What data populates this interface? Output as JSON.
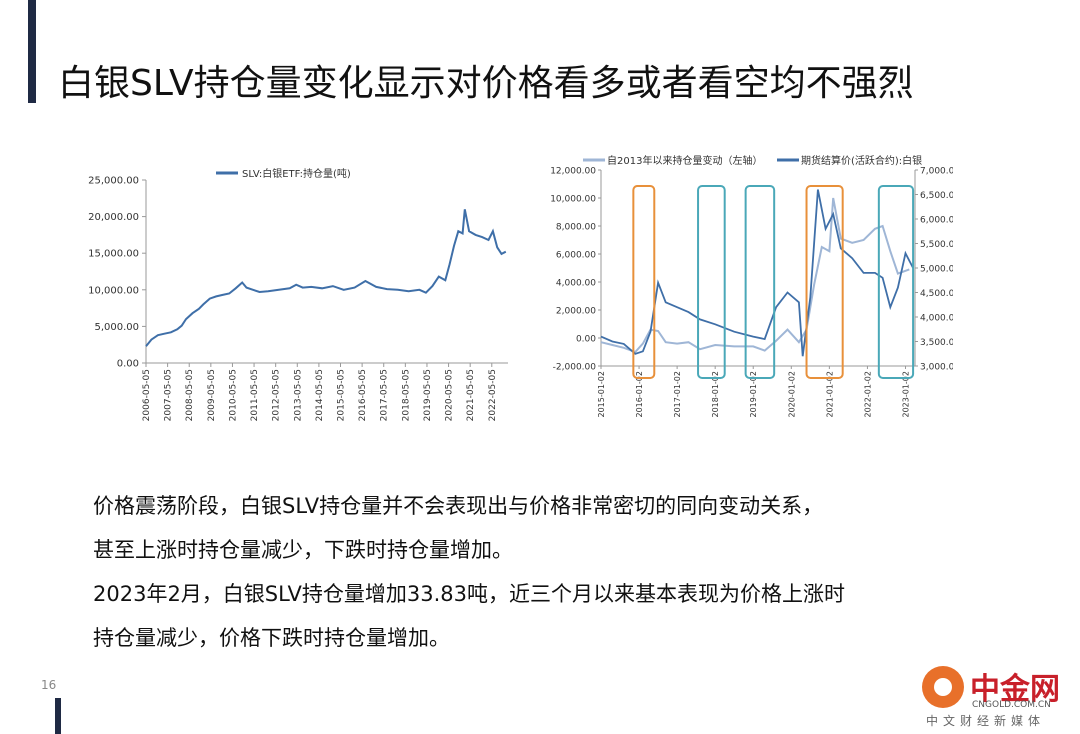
{
  "page": {
    "title": "白银SLV持仓量变化显示对价格看多或者看空均不强烈",
    "page_number": "16",
    "paragraphs": [
      "价格震荡阶段，白银SLV持仓量并不会表现出与价格非常密切的同向变动关系，",
      "甚至上涨时持仓量减少，下跌时持仓量增加。",
      "2023年2月，白银SLV持仓量增加33.83吨，近三个月以来基本表现为价格上涨时",
      "持仓量减少，价格下跌时持仓量增加。"
    ]
  },
  "watermark": {
    "name": "中金网",
    "domain": "CNGOLD.COM.CN",
    "tagline": "中文财经新媒体"
  },
  "colors": {
    "dark_bar": "#1f2a44",
    "line_dark": "#3f6fa8",
    "line_light": "#9fb6d6",
    "box_orange": "#e8903a",
    "box_teal": "#4aa8b8"
  },
  "chart_data": [
    {
      "type": "line",
      "legend": "top",
      "grid": false,
      "series": [
        {
          "name": "SLV:白银ETF:持仓量(吨)"
        }
      ],
      "x_ticks": [
        "2006-05-05",
        "2007-05-05",
        "2008-05-05",
        "2009-05-05",
        "2010-05-05",
        "2011-05-05",
        "2012-05-05",
        "2013-05-05",
        "2014-05-05",
        "2015-05-05",
        "2016-05-05",
        "2017-05-05",
        "2018-05-05",
        "2019-05-05",
        "2020-05-05",
        "2021-05-05",
        "2022-05-05"
      ],
      "y_ticks": [
        "0.00",
        "5,000.00",
        "10,000.00",
        "15,000.00",
        "20,000.00",
        "25,000.00"
      ],
      "ylim": [
        0,
        25000
      ],
      "xlim": [
        2006.35,
        2023.1
      ],
      "points": [
        [
          2006.35,
          2300
        ],
        [
          2006.6,
          3200
        ],
        [
          2006.9,
          3800
        ],
        [
          2007.2,
          4000
        ],
        [
          2007.5,
          4200
        ],
        [
          2007.8,
          4600
        ],
        [
          2008.0,
          5100
        ],
        [
          2008.2,
          6000
        ],
        [
          2008.5,
          6800
        ],
        [
          2008.8,
          7400
        ],
        [
          2009.0,
          8000
        ],
        [
          2009.3,
          8800
        ],
        [
          2009.6,
          9100
        ],
        [
          2009.9,
          9300
        ],
        [
          2010.2,
          9500
        ],
        [
          2010.5,
          10200
        ],
        [
          2010.8,
          11000
        ],
        [
          2011.0,
          10300
        ],
        [
          2011.3,
          10000
        ],
        [
          2011.6,
          9700
        ],
        [
          2012.0,
          9800
        ],
        [
          2012.5,
          10000
        ],
        [
          2013.0,
          10200
        ],
        [
          2013.3,
          10700
        ],
        [
          2013.6,
          10300
        ],
        [
          2014.0,
          10400
        ],
        [
          2014.5,
          10200
        ],
        [
          2015.0,
          10500
        ],
        [
          2015.5,
          10000
        ],
        [
          2016.0,
          10300
        ],
        [
          2016.5,
          11200
        ],
        [
          2017.0,
          10400
        ],
        [
          2017.5,
          10100
        ],
        [
          2018.0,
          10000
        ],
        [
          2018.5,
          9800
        ],
        [
          2019.0,
          10000
        ],
        [
          2019.3,
          9600
        ],
        [
          2019.6,
          10500
        ],
        [
          2019.9,
          11800
        ],
        [
          2020.2,
          11300
        ],
        [
          2020.4,
          13500
        ],
        [
          2020.6,
          16000
        ],
        [
          2020.8,
          18000
        ],
        [
          2021.0,
          17700
        ],
        [
          2021.1,
          21000
        ],
        [
          2021.3,
          18000
        ],
        [
          2021.6,
          17500
        ],
        [
          2021.9,
          17200
        ],
        [
          2022.2,
          16800
        ],
        [
          2022.4,
          18000
        ],
        [
          2022.6,
          15800
        ],
        [
          2022.8,
          14900
        ],
        [
          2023.0,
          15200
        ]
      ]
    },
    {
      "type": "line",
      "legend": "top",
      "grid": false,
      "series": [
        {
          "name": "自2013年以来持仓量变动（左轴）",
          "axis": "left"
        },
        {
          "name": "期货结算价(活跃合约):白银",
          "axis": "right"
        }
      ],
      "x_ticks": [
        "2015-01-02",
        "2016-01-02",
        "2017-01-02",
        "2018-01-02",
        "2019-01-02",
        "2020-01-02",
        "2021-01-02",
        "2022-01-02",
        "2023-01-02"
      ],
      "y_left_ticks": [
        "-2,000.00",
        "0.00",
        "2,000.00",
        "4,000.00",
        "6,000.00",
        "8,000.00",
        "10,000.00",
        "12,000.00"
      ],
      "y_right_ticks": [
        "3,000.00",
        "3,500.00",
        "4,000.00",
        "4,500.00",
        "5,000.00",
        "5,500.00",
        "6,000.00",
        "6,500.00",
        "7,000.00"
      ],
      "ylim_left": [
        -2000,
        12000
      ],
      "ylim_right": [
        3000,
        7000
      ],
      "xlim": [
        2015.0,
        2023.25
      ],
      "holdings_change": [
        [
          2015.0,
          -300
        ],
        [
          2015.3,
          -500
        ],
        [
          2015.6,
          -700
        ],
        [
          2015.9,
          -1000
        ],
        [
          2016.1,
          -400
        ],
        [
          2016.3,
          600
        ],
        [
          2016.5,
          500
        ],
        [
          2016.7,
          -300
        ],
        [
          2017.0,
          -400
        ],
        [
          2017.3,
          -300
        ],
        [
          2017.6,
          -800
        ],
        [
          2018.0,
          -500
        ],
        [
          2018.5,
          -600
        ],
        [
          2019.0,
          -600
        ],
        [
          2019.3,
          -900
        ],
        [
          2019.6,
          -200
        ],
        [
          2019.9,
          600
        ],
        [
          2020.2,
          -300
        ],
        [
          2020.4,
          600
        ],
        [
          2020.6,
          3800
        ],
        [
          2020.8,
          6500
        ],
        [
          2021.0,
          6200
        ],
        [
          2021.1,
          10000
        ],
        [
          2021.3,
          7100
        ],
        [
          2021.6,
          6800
        ],
        [
          2021.9,
          7000
        ],
        [
          2022.2,
          7800
        ],
        [
          2022.4,
          8000
        ],
        [
          2022.6,
          6200
        ],
        [
          2022.8,
          4600
        ],
        [
          2023.1,
          4900
        ]
      ],
      "futures_price": [
        [
          2015.0,
          3600
        ],
        [
          2015.3,
          3500
        ],
        [
          2015.6,
          3450
        ],
        [
          2015.9,
          3250
        ],
        [
          2016.1,
          3300
        ],
        [
          2016.3,
          3700
        ],
        [
          2016.5,
          4700
        ],
        [
          2016.7,
          4300
        ],
        [
          2017.0,
          4200
        ],
        [
          2017.3,
          4100
        ],
        [
          2017.6,
          3950
        ],
        [
          2018.0,
          3850
        ],
        [
          2018.5,
          3700
        ],
        [
          2019.0,
          3600
        ],
        [
          2019.3,
          3550
        ],
        [
          2019.6,
          4200
        ],
        [
          2019.9,
          4500
        ],
        [
          2020.2,
          4300
        ],
        [
          2020.3,
          3200
        ],
        [
          2020.5,
          4400
        ],
        [
          2020.6,
          5500
        ],
        [
          2020.7,
          6600
        ],
        [
          2020.9,
          5800
        ],
        [
          2021.1,
          6100
        ],
        [
          2021.3,
          5400
        ],
        [
          2021.6,
          5200
        ],
        [
          2021.9,
          4900
        ],
        [
          2022.2,
          4900
        ],
        [
          2022.4,
          4800
        ],
        [
          2022.6,
          4200
        ],
        [
          2022.8,
          4600
        ],
        [
          2023.0,
          5300
        ],
        [
          2023.2,
          5000
        ]
      ],
      "highlight_boxes": [
        {
          "from": 2015.85,
          "to": 2016.4,
          "color": "orange"
        },
        {
          "from": 2017.55,
          "to": 2018.25,
          "color": "teal"
        },
        {
          "from": 2018.8,
          "to": 2019.55,
          "color": "teal"
        },
        {
          "from": 2020.4,
          "to": 2021.35,
          "color": "orange"
        },
        {
          "from": 2022.3,
          "to": 2023.2,
          "color": "teal"
        }
      ]
    }
  ]
}
